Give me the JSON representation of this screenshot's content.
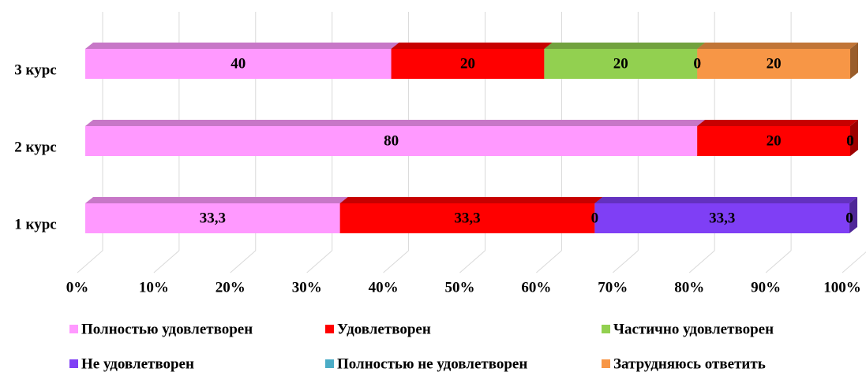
{
  "chart_data": {
    "type": "bar",
    "orientation": "horizontal",
    "stacked": true,
    "categories": [
      "1 курс",
      "2 курс",
      "3 курс"
    ],
    "series": [
      {
        "name": "Полностью удовлетворен",
        "color": "#ff99ff",
        "values": [
          33.3,
          80,
          40
        ],
        "value_labels": [
          "33,3",
          "80",
          "40"
        ]
      },
      {
        "name": "Удовлетворен",
        "color": "#ff0000",
        "values": [
          33.3,
          20,
          20
        ],
        "value_labels": [
          "33,3",
          "20",
          "20"
        ]
      },
      {
        "name": "Частично удовлетворен",
        "color": "#92d050",
        "values": [
          0,
          0,
          20
        ],
        "value_labels": [
          "0",
          "0",
          "20"
        ]
      },
      {
        "name": "Не удовлетворен",
        "color": "#7f3ff5",
        "values": [
          33.3,
          0,
          0
        ],
        "value_labels": [
          "33,3",
          "0",
          "0"
        ]
      },
      {
        "name": "Полностью не удовлетворен",
        "color": "#4bacc6",
        "values": [
          0,
          0,
          0
        ],
        "value_labels": [
          "0",
          "0",
          "0"
        ]
      },
      {
        "name": "Затрудняюсь ответить",
        "color": "#f79646",
        "values": [
          0,
          0,
          20
        ],
        "value_labels": [
          "0",
          "0",
          "20"
        ]
      }
    ],
    "xlim": [
      0,
      100
    ],
    "xticks": [
      {
        "value": 0,
        "label": "0%"
      },
      {
        "value": 10,
        "label": "10%"
      },
      {
        "value": 20,
        "label": "20%"
      },
      {
        "value": 30,
        "label": "30%"
      },
      {
        "value": 40,
        "label": "40%"
      },
      {
        "value": 50,
        "label": "50%"
      },
      {
        "value": 60,
        "label": "60%"
      },
      {
        "value": 70,
        "label": "70%"
      },
      {
        "value": 80,
        "label": "80%"
      },
      {
        "value": 90,
        "label": "90%"
      },
      {
        "value": 100,
        "label": "100%"
      }
    ],
    "grid": true,
    "legend": "bottom"
  }
}
